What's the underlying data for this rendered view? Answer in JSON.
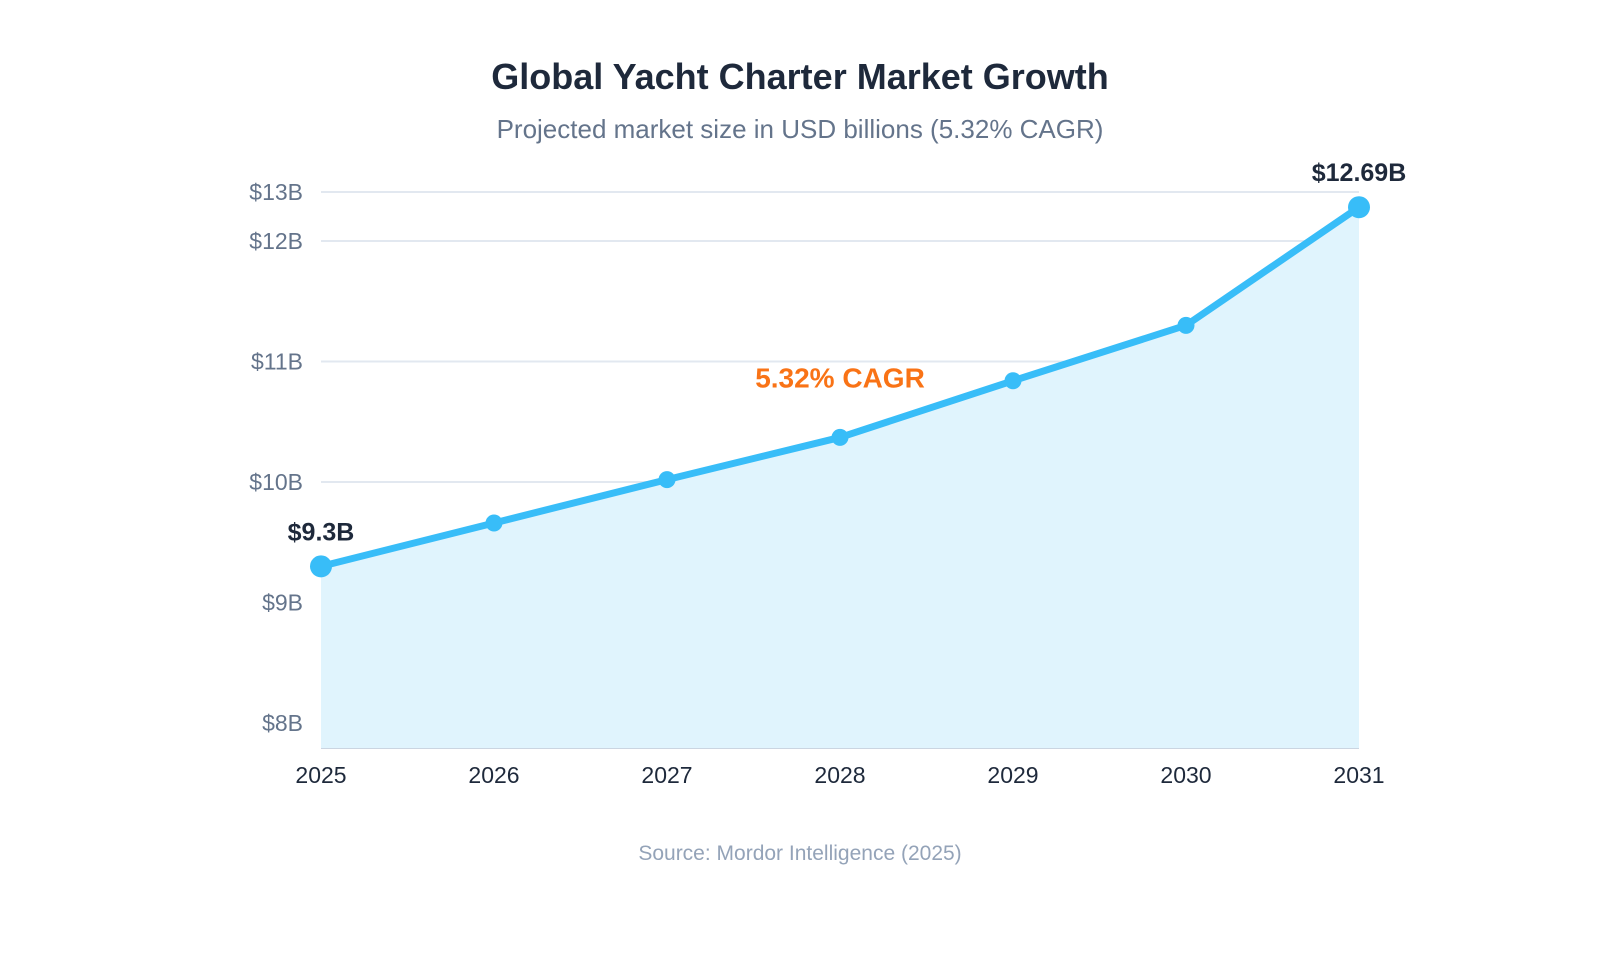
{
  "chart_data": {
    "type": "area",
    "title": "Global Yacht Charter Market Growth",
    "subtitle": "Projected market size in USD billions (5.32% CAGR)",
    "source": "Source: Mordor Intelligence (2025)",
    "x": [
      "2025",
      "2026",
      "2027",
      "2028",
      "2029",
      "2030",
      "2031"
    ],
    "values": [
      9.3,
      9.66,
      10.02,
      10.37,
      10.84,
      11.3,
      12.69
    ],
    "yticks": [
      {
        "value": 8,
        "label": "$8B"
      },
      {
        "value": 9,
        "label": "$9B"
      },
      {
        "value": 10,
        "label": "$10B"
      },
      {
        "value": 11,
        "label": "$11B"
      },
      {
        "value": 12,
        "label": "$12B"
      },
      {
        "value": 13,
        "label": "$13B"
      }
    ],
    "ylim": [
      7.8,
      13
    ],
    "grid": true,
    "data_labels": [
      {
        "index": 0,
        "text": "$9.3B"
      },
      {
        "index": 6,
        "text": "$12.69B"
      }
    ],
    "annotation": {
      "text": "5.32% CAGR",
      "x": "2028"
    },
    "colors": {
      "line": "#38bdf8",
      "fill": "#e0f4fd",
      "annotation": "#f97316",
      "grid": "#e2e8f0"
    }
  }
}
